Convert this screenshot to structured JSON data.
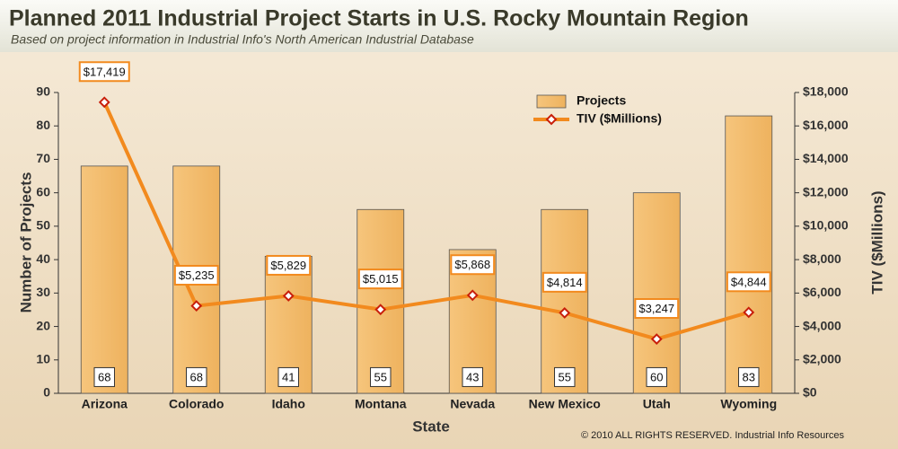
{
  "chart_data": {
    "type": "bar",
    "title": "Planned 2011 Industrial Project Starts in U.S. Rocky Mountain Region",
    "subtitle": "Based on project information in Industrial Info's North American Industrial Database",
    "x_label": "State",
    "y_label": "Number of Projects",
    "y2_label": "TIV ($Millions)",
    "footer": "© 2010 ALL RIGHTS RESERVED. Industrial Info Resources",
    "categories": [
      "Arizona",
      "Colorado",
      "Idaho",
      "Montana",
      "Nevada",
      "New Mexico",
      "Utah",
      "Wyoming"
    ],
    "series": [
      {
        "name": "Projects",
        "type": "bar",
        "color": "#f2b866",
        "values": [
          68,
          68,
          41,
          55,
          43,
          55,
          60,
          83
        ]
      },
      {
        "name": "TIV ($Millions)",
        "type": "line",
        "axis": "y2",
        "color": "#f28a1e",
        "values": [
          17419,
          5235,
          5829,
          5015,
          5868,
          4814,
          3247,
          4844
        ],
        "value_labels": [
          "$17,419",
          "$5,235",
          "$5,829",
          "$5,015",
          "$5,868",
          "$4,814",
          "$3,247",
          "$4,844"
        ]
      }
    ],
    "ylim": [
      0,
      90
    ],
    "yticks": [
      0,
      10,
      20,
      30,
      40,
      50,
      60,
      70,
      80,
      90
    ],
    "y2lim": [
      0,
      18000
    ],
    "y2ticks": [
      {
        "value": 0,
        "label": "$0"
      },
      {
        "value": 2000,
        "label": "$2,000"
      },
      {
        "value": 4000,
        "label": "$4,000"
      },
      {
        "value": 6000,
        "label": "$6,000"
      },
      {
        "value": 8000,
        "label": "$8,000"
      },
      {
        "value": 10000,
        "label": "$10,000"
      },
      {
        "value": 12000,
        "label": "$12,000"
      },
      {
        "value": 14000,
        "label": "$14,000"
      },
      {
        "value": 16000,
        "label": "$16,000"
      },
      {
        "value": 18000,
        "label": "$18,000"
      }
    ],
    "legend": "top-right"
  }
}
